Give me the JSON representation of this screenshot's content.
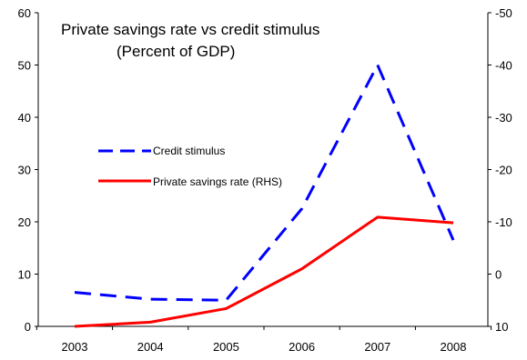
{
  "chart_data": {
    "type": "line",
    "title": "Private savings rate vs credit stimulus",
    "subtitle": "(Percent of GDP)",
    "categories": [
      "2003",
      "2004",
      "2005",
      "2006",
      "2007",
      "2008"
    ],
    "left_axis": {
      "ylim": [
        0,
        60
      ],
      "ticks": [
        "0",
        "10",
        "20",
        "30",
        "40",
        "50",
        "60"
      ]
    },
    "right_axis": {
      "ylim": [
        10,
        -50
      ],
      "inverted": true,
      "ticks": [
        "10",
        "0",
        "-10",
        "-20",
        "-30",
        "-40",
        "-50"
      ]
    },
    "series": [
      {
        "name": "Credit stimulus",
        "axis": "left",
        "style": "dashed",
        "color": "#0000ff",
        "values": [
          6.5,
          5.2,
          5.0,
          22.5,
          50.0,
          16.5
        ]
      },
      {
        "name": "Private savings rate (RHS)",
        "axis": "right",
        "style": "solid",
        "color": "#ff0000",
        "values": [
          10.0,
          9.2,
          6.6,
          -1.0,
          -10.9,
          -9.8
        ]
      }
    ],
    "legend": {
      "placement": "upper-left"
    },
    "grid": false
  }
}
